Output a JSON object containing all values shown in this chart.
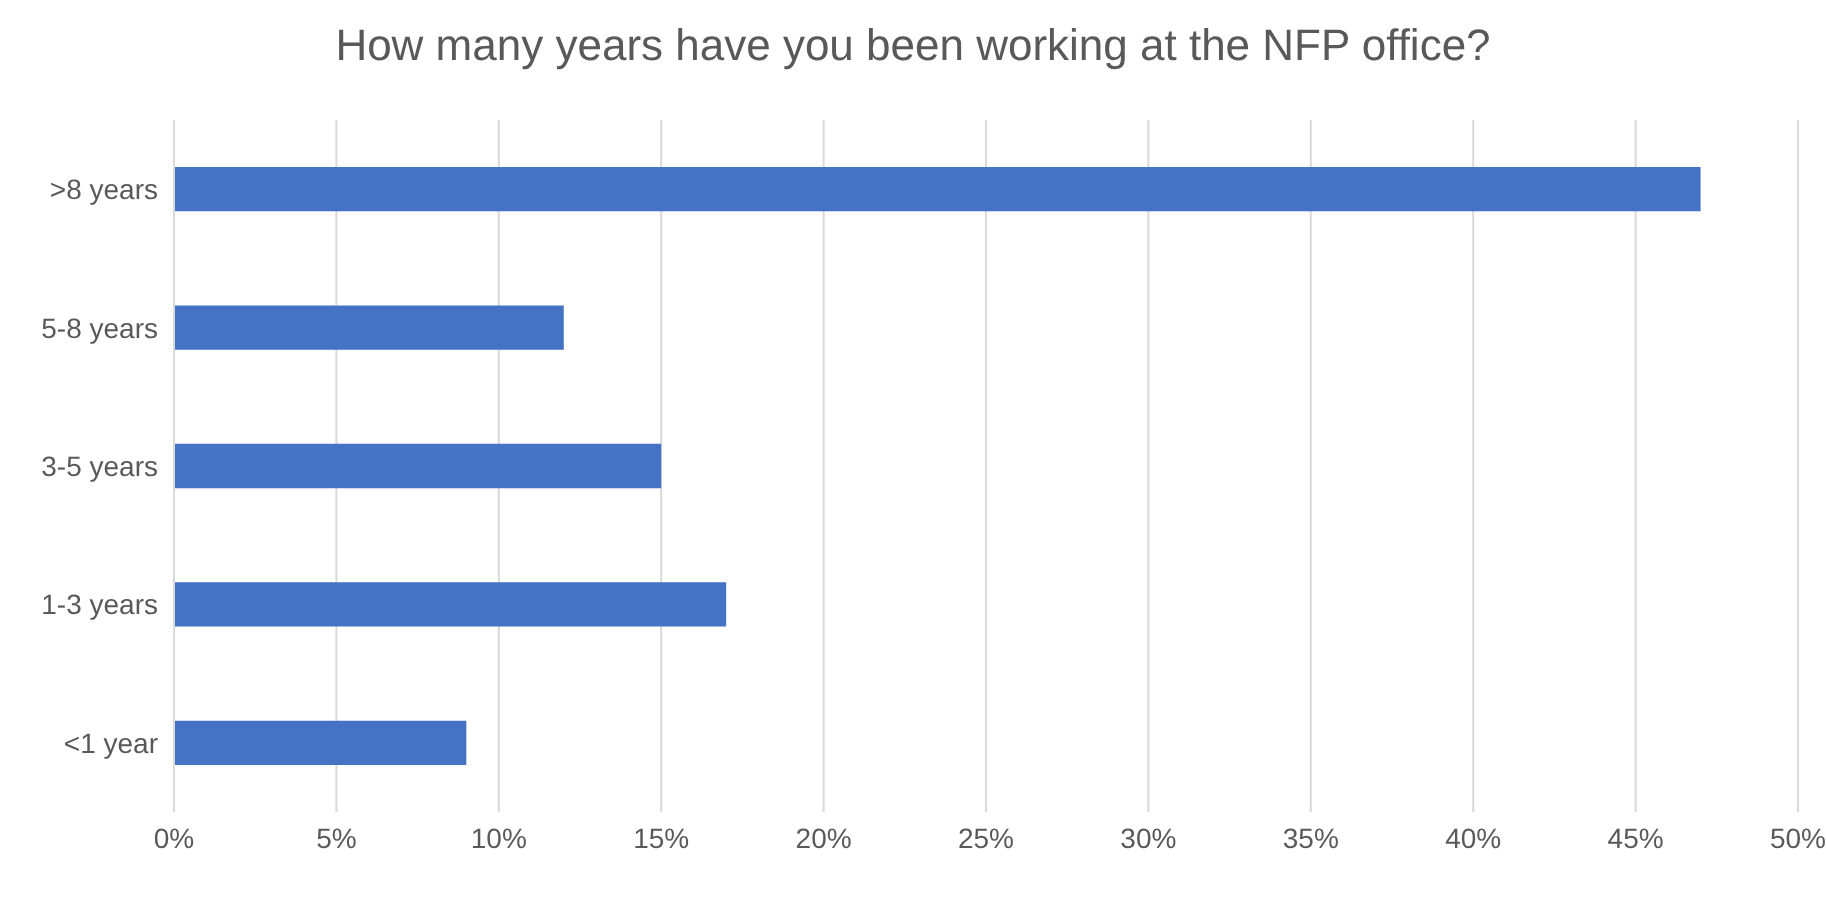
{
  "chart_data": {
    "type": "bar",
    "orientation": "horizontal",
    "title": "How many years have you been working at the NFP office?",
    "categories": [
      ">8 years",
      "5-8 years",
      "3-5 years",
      "1-3 years",
      "<1 year"
    ],
    "values": [
      47,
      12,
      15,
      17,
      9
    ],
    "color": "#4472c4",
    "xlim": [
      0,
      50
    ],
    "xticks": [
      {
        "value": 0,
        "label": "0%"
      },
      {
        "value": 5,
        "label": "5%"
      },
      {
        "value": 10,
        "label": "10%"
      },
      {
        "value": 15,
        "label": "15%"
      },
      {
        "value": 20,
        "label": "20%"
      },
      {
        "value": 25,
        "label": "25%"
      },
      {
        "value": 30,
        "label": "30%"
      },
      {
        "value": 35,
        "label": "35%"
      },
      {
        "value": 40,
        "label": "40%"
      },
      {
        "value": 45,
        "label": "45%"
      },
      {
        "value": 50,
        "label": "50%"
      }
    ],
    "grid": "x",
    "legend": false
  }
}
